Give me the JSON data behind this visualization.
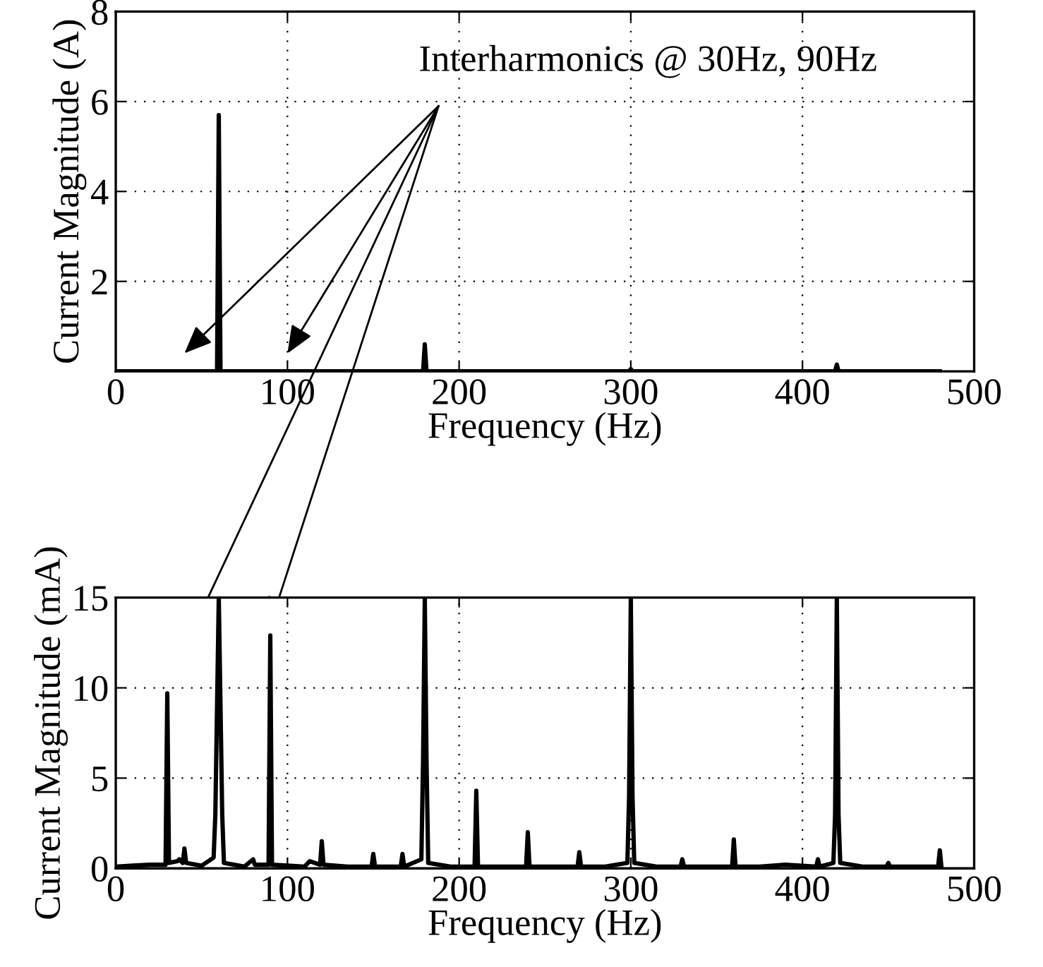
{
  "chart_data": [
    {
      "type": "line",
      "xlabel": "Frequency (Hz)",
      "ylabel": "Current Magnitude (A)",
      "xlim": [
        0,
        500
      ],
      "xticks": [
        0,
        100,
        200,
        300,
        400,
        500
      ],
      "ylim": [
        0,
        8
      ],
      "yticks": [
        2,
        4,
        6,
        8
      ],
      "grid": true,
      "line_style": "solid",
      "annotations": [
        "Interharmonics @ 30Hz, 90Hz"
      ],
      "series": [
        {
          "color": "#000000",
          "x": [
            0,
            59,
            60,
            61,
            179,
            180,
            181,
            299,
            300,
            301,
            419,
            420,
            421,
            480
          ],
          "values": [
            0,
            0,
            5.7,
            0,
            0,
            0.6,
            0,
            0,
            0.05,
            0,
            0,
            0.15,
            0,
            0
          ]
        }
      ]
    },
    {
      "type": "line",
      "xlabel": "Frequency (Hz)",
      "ylabel": "Current Magnitude (mA)",
      "xlim": [
        0,
        500
      ],
      "xticks": [
        0,
        100,
        200,
        300,
        400,
        500
      ],
      "ylim": [
        0,
        15
      ],
      "yticks": [
        0,
        5,
        10,
        15
      ],
      "grid": true,
      "line_style": "solid",
      "series": [
        {
          "color": "#000000",
          "x": [
            0,
            10,
            20,
            29,
            30,
            31,
            36,
            37,
            39,
            40,
            41,
            50,
            57,
            58,
            60,
            62,
            63,
            75,
            80,
            81,
            89,
            90,
            91,
            100,
            110,
            113,
            119,
            120,
            121,
            135,
            149,
            150,
            151,
            166,
            167,
            168,
            178,
            179,
            180,
            181,
            182,
            195,
            209,
            210,
            211,
            225,
            239,
            240,
            241,
            255,
            269,
            270,
            271,
            285,
            298,
            299,
            300,
            301,
            302,
            315,
            329,
            330,
            331,
            345,
            359,
            360,
            361,
            375,
            390,
            408,
            409,
            410,
            418,
            419,
            420,
            421,
            422,
            435,
            449,
            450,
            451,
            465,
            479,
            480,
            481
          ],
          "values": [
            0.1,
            0.15,
            0.2,
            0.2,
            9.7,
            0.3,
            0.4,
            0.5,
            0.3,
            1.1,
            0.3,
            0.15,
            0.6,
            3,
            15,
            3,
            0.3,
            0.1,
            0.5,
            0.2,
            0.2,
            12.9,
            0.2,
            0.15,
            0.1,
            0.4,
            0.2,
            1.5,
            0.2,
            0.1,
            0.1,
            0.8,
            0.1,
            0.1,
            0.8,
            0.1,
            0.5,
            6,
            15,
            6,
            0.3,
            0.1,
            0.1,
            4.3,
            0.1,
            0.1,
            0.1,
            2.0,
            0.1,
            0.1,
            0.1,
            0.9,
            0.1,
            0.1,
            0.3,
            4,
            15,
            4,
            0.3,
            0.1,
            0.1,
            0.5,
            0.1,
            0.1,
            0.1,
            1.6,
            0.1,
            0.1,
            0.2,
            0.1,
            0.5,
            0.1,
            0.3,
            3,
            15,
            3,
            0.3,
            0.1,
            0.1,
            0.3,
            0.1,
            0.1,
            0.1,
            1.0,
            0
          ]
        }
      ]
    }
  ]
}
